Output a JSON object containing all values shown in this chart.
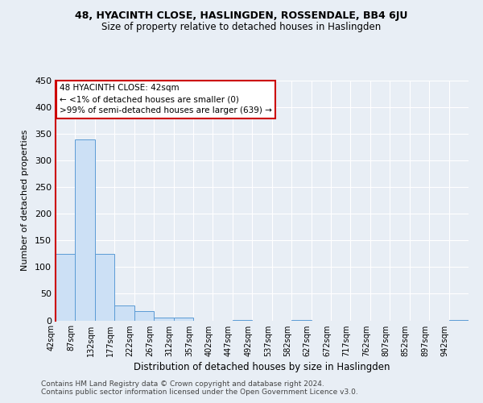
{
  "title1": "48, HYACINTH CLOSE, HASLINGDEN, ROSSENDALE, BB4 6JU",
  "title2": "Size of property relative to detached houses in Haslingden",
  "xlabel": "Distribution of detached houses by size in Haslingden",
  "ylabel": "Number of detached properties",
  "bin_labels": [
    "42sqm",
    "87sqm",
    "132sqm",
    "177sqm",
    "222sqm",
    "267sqm",
    "312sqm",
    "357sqm",
    "402sqm",
    "447sqm",
    "492sqm",
    "537sqm",
    "582sqm",
    "627sqm",
    "672sqm",
    "717sqm",
    "762sqm",
    "807sqm",
    "852sqm",
    "897sqm",
    "942sqm"
  ],
  "bin_values": [
    125,
    340,
    125,
    28,
    17,
    6,
    5,
    0,
    0,
    1,
    0,
    0,
    1,
    0,
    0,
    0,
    0,
    0,
    0,
    0,
    1
  ],
  "bar_color": "#cce0f5",
  "bar_edge_color": "#5b9bd5",
  "annotation_title": "48 HYACINTH CLOSE: 42sqm",
  "annotation_line1": "← <1% of detached houses are smaller (0)",
  "annotation_line2": ">99% of semi-detached houses are larger (639) →",
  "box_color": "#cc0000",
  "footnote1": "Contains HM Land Registry data © Crown copyright and database right 2024.",
  "footnote2": "Contains public sector information licensed under the Open Government Licence v3.0.",
  "ylim": [
    0,
    450
  ],
  "yticks": [
    0,
    50,
    100,
    150,
    200,
    250,
    300,
    350,
    400,
    450
  ],
  "bg_color": "#e8eef5",
  "plot_bg_color": "#e8eef5",
  "grid_color": "#ffffff"
}
